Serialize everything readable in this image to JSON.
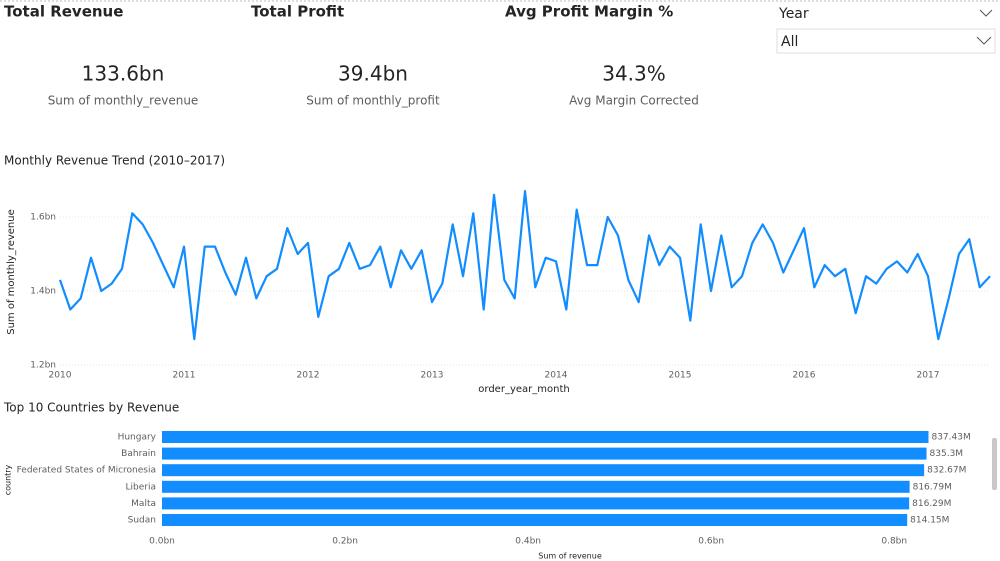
{
  "cards": [
    {
      "title": "Total Revenue",
      "value": "133.6bn",
      "label": "Sum of monthly_revenue"
    },
    {
      "title": "Total Profit",
      "value": "39.4bn",
      "label": "Sum of monthly_profit"
    },
    {
      "title": "Avg Profit Margin %",
      "value": "34.3%",
      "label": "Avg Margin Corrected"
    }
  ],
  "slicer": {
    "title": "Year",
    "value": "All"
  },
  "chart_data": [
    {
      "type": "line",
      "title": "Monthly Revenue Trend (2010–2017)",
      "x_label": "order_year_month",
      "y_label": "Sum of monthly_revenue",
      "color": "#118DFF",
      "x": [
        2010,
        2010.083,
        2010.167,
        2010.25,
        2010.333,
        2010.417,
        2010.5,
        2010.583,
        2010.667,
        2010.75,
        2010.833,
        2010.917,
        2011,
        2011.083,
        2011.167,
        2011.25,
        2011.333,
        2011.417,
        2011.5,
        2011.583,
        2011.667,
        2011.75,
        2011.833,
        2011.917,
        2012,
        2012.083,
        2012.167,
        2012.25,
        2012.333,
        2012.417,
        2012.5,
        2012.583,
        2012.667,
        2012.75,
        2012.833,
        2012.917,
        2013,
        2013.083,
        2013.167,
        2013.25,
        2013.333,
        2013.417,
        2013.5,
        2013.583,
        2013.667,
        2013.75,
        2013.833,
        2013.917,
        2014,
        2014.083,
        2014.167,
        2014.25,
        2014.333,
        2014.417,
        2014.5,
        2014.583,
        2014.667,
        2014.75,
        2014.833,
        2014.917,
        2015,
        2015.083,
        2015.167,
        2015.25,
        2015.333,
        2015.417,
        2015.5,
        2015.583,
        2015.667,
        2015.75,
        2015.833,
        2015.917,
        2016,
        2016.083,
        2016.167,
        2016.25,
        2016.333,
        2016.417,
        2016.5,
        2016.583,
        2016.667,
        2016.75,
        2016.833,
        2016.917,
        2017,
        2017.083,
        2017.167,
        2017.25,
        2017.333,
        2017.417,
        2017.5
      ],
      "values": [
        1.43,
        1.35,
        1.38,
        1.49,
        1.4,
        1.42,
        1.46,
        1.61,
        1.58,
        1.53,
        1.47,
        1.41,
        1.52,
        1.27,
        1.52,
        1.52,
        1.45,
        1.39,
        1.49,
        1.38,
        1.44,
        1.46,
        1.57,
        1.5,
        1.53,
        1.33,
        1.44,
        1.46,
        1.53,
        1.46,
        1.47,
        1.52,
        1.41,
        1.51,
        1.46,
        1.51,
        1.37,
        1.42,
        1.58,
        1.44,
        1.61,
        1.35,
        1.66,
        1.43,
        1.38,
        1.67,
        1.41,
        1.49,
        1.48,
        1.35,
        1.62,
        1.47,
        1.47,
        1.6,
        1.55,
        1.43,
        1.37,
        1.55,
        1.47,
        1.52,
        1.49,
        1.32,
        1.58,
        1.4,
        1.55,
        1.41,
        1.44,
        1.53,
        1.58,
        1.53,
        1.45,
        1.51,
        1.57,
        1.41,
        1.47,
        1.44,
        1.46,
        1.34,
        1.44,
        1.42,
        1.46,
        1.48,
        1.45,
        1.5,
        1.44,
        1.27,
        1.38,
        1.5,
        1.54,
        1.41,
        1.44
      ],
      "xlim": [
        2010,
        2017.5
      ],
      "xticks": [
        2010,
        2011,
        2012,
        2013,
        2014,
        2015,
        2016,
        2017
      ],
      "ylim": [
        1.2,
        1.7
      ],
      "yticks": [
        {
          "value": 1.2,
          "label": "1.2bn"
        },
        {
          "value": 1.4,
          "label": "1.4bn"
        },
        {
          "value": 1.6,
          "label": "1.6bn"
        }
      ],
      "grid": true
    },
    {
      "type": "hbar",
      "title": "Top 10 Countries by Revenue",
      "x_label": "Sum of revenue",
      "y_label": "country",
      "color": "#118DFF",
      "categories": [
        "Hungary",
        "Bahrain",
        "Federated States of Micronesia",
        "Liberia",
        "Malta",
        "Sudan"
      ],
      "values": [
        0.83743,
        0.8353,
        0.83267,
        0.81679,
        0.81629,
        0.81415
      ],
      "value_labels": [
        "837.43M",
        "835.3M",
        "832.67M",
        "816.79M",
        "816.29M",
        "814.15M"
      ],
      "xlim": [
        0,
        0.85
      ],
      "xticks": [
        {
          "value": 0,
          "label": "0.0bn"
        },
        {
          "value": 0.2,
          "label": "0.2bn"
        },
        {
          "value": 0.4,
          "label": "0.4bn"
        },
        {
          "value": 0.6,
          "label": "0.6bn"
        },
        {
          "value": 0.8,
          "label": "0.8bn"
        }
      ]
    }
  ]
}
